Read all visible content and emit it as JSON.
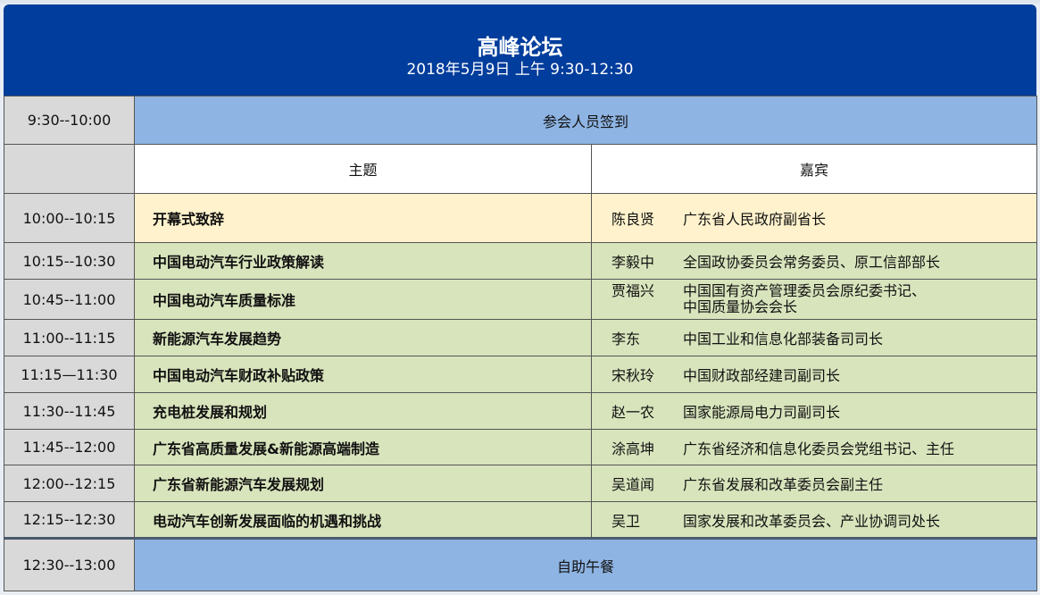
{
  "header": {
    "title": "高峰论坛",
    "subtitle": "2018年5月9日 上午  9:30-12:30"
  },
  "colors": {
    "header": "#003d9c",
    "highlight": "#8eb4e3",
    "time": "#d9d9d9",
    "opening": "#fff2cc",
    "session": "#d8e4bc"
  },
  "signin": {
    "time": "9:30--10:00",
    "label": "参会人员签到"
  },
  "columns": {
    "topic": "主题",
    "guest": "嘉宾"
  },
  "rows": [
    {
      "time": "10:00--10:15",
      "topic": "开幕式致辞",
      "name": "陈良贤",
      "role": "广东省人民政府副省长"
    },
    {
      "time": "10:15--10:30",
      "topic": "中国电动汽车行业政策解读",
      "name": "李毅中",
      "role": "全国政协委员会常务委员、原工信部部长"
    },
    {
      "time": "10:45--11:00",
      "topic": "中国电动汽车质量标准",
      "name": "贾福兴",
      "role": "中国国有资产管理委员会原纪委书记、",
      "role2": "中国质量协会会长"
    },
    {
      "time": "11:00--11:15",
      "topic": "新能源汽车发展趋势",
      "name": "李东",
      "role": "中国工业和信息化部装备司司长"
    },
    {
      "time": "11:15—11:30",
      "topic": "中国电动汽车财政补贴政策",
      "name": "宋秋玲",
      "role": "中国财政部经建司副司长"
    },
    {
      "time": "11:30--11:45",
      "topic": "充电桩发展和规划",
      "name": "赵一农",
      "role": "国家能源局电力司副司长"
    },
    {
      "time": "11:45--12:00",
      "topic": "广东省高质量发展&新能源高端制造",
      "name": "涂高坤",
      "role": "广东省经济和信息化委员会党组书记、主任"
    },
    {
      "time": "12:00--12:15",
      "topic": "广东省新能源汽车发展规划",
      "name": "吴道闻",
      "role": "广东省发展和改革委员会副主任"
    },
    {
      "time": "12:15--12:30",
      "topic": "电动汽车创新发展面临的机遇和挑战",
      "name": "吴卫",
      "role": "国家发展和改革委员会、产业协调司处长"
    }
  ],
  "lunch": {
    "time": "12:30--13:00",
    "label": "自助午餐"
  }
}
